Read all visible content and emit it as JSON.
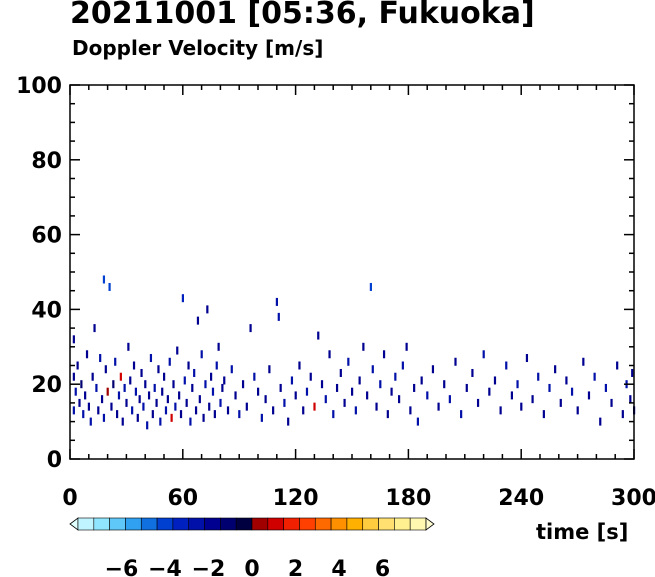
{
  "chart_data": {
    "type": "scatter",
    "title": "20211001 [05:36, Fukuoka]",
    "subtitle": "Doppler Velocity [m/s]",
    "xlabel": "time [s]",
    "ylabel": "",
    "xlim": [
      0,
      300
    ],
    "ylim": [
      0,
      100
    ],
    "x_ticks": [
      "0",
      "60",
      "120",
      "180",
      "240",
      "300"
    ],
    "y_ticks": [
      "0",
      "20",
      "40",
      "60",
      "80",
      "100"
    ],
    "grid": false,
    "colorbar": {
      "range": [
        -8,
        8
      ],
      "tick_labels": [
        "−6",
        "−4",
        "−2",
        "0",
        "2",
        "4",
        "6"
      ],
      "tick_values": [
        -6,
        -4,
        -2,
        0,
        2,
        4,
        6
      ],
      "colors": [
        "#e0ffff",
        "#c0f4ff",
        "#90e6ff",
        "#60c8f8",
        "#30a0f0",
        "#1070e0",
        "#0040d0",
        "#0020c0",
        "#0010a8",
        "#000090",
        "#000070",
        "#000040",
        "#a00000",
        "#d00000",
        "#f02000",
        "#ff4000",
        "#ff6a00",
        "#ff9000",
        "#ffb000",
        "#ffcc40",
        "#ffe070",
        "#fff090",
        "#fff8b0",
        "#fffcd0"
      ]
    },
    "points": [
      [
        2,
        32,
        -1.5
      ],
      [
        2,
        13,
        -2.5
      ],
      [
        2,
        22,
        -1.8
      ],
      [
        3,
        18,
        -2.2
      ],
      [
        4,
        25,
        -1.5
      ],
      [
        5,
        15,
        -2.0
      ],
      [
        6,
        20,
        -1.2
      ],
      [
        7,
        12,
        -2.4
      ],
      [
        8,
        17,
        -1.6
      ],
      [
        9,
        28,
        -2.0
      ],
      [
        10,
        14,
        -1.8
      ],
      [
        11,
        10,
        -2.6
      ],
      [
        12,
        22,
        -1.4
      ],
      [
        13,
        35,
        -1.7
      ],
      [
        14,
        19,
        -2.2
      ],
      [
        15,
        13,
        -1.9
      ],
      [
        16,
        27,
        -2.1
      ],
      [
        17,
        16,
        -1.5
      ],
      [
        18,
        11,
        -2.5
      ],
      [
        18,
        48,
        -3.5
      ],
      [
        19,
        24,
        -1.8
      ],
      [
        20,
        18,
        0.6
      ],
      [
        21,
        46,
        -4.0
      ],
      [
        22,
        14,
        -2.0
      ],
      [
        23,
        20,
        -1.3
      ],
      [
        24,
        26,
        -2.3
      ],
      [
        25,
        12,
        -1.7
      ],
      [
        26,
        17,
        -2.5
      ],
      [
        27,
        22,
        1.2
      ],
      [
        28,
        10,
        -1.9
      ],
      [
        29,
        19,
        -2.1
      ],
      [
        30,
        15,
        -1.4
      ],
      [
        31,
        30,
        -2.0
      ],
      [
        32,
        21,
        -1.6
      ],
      [
        33,
        13,
        -2.4
      ],
      [
        34,
        25,
        -1.8
      ],
      [
        35,
        18,
        -2.2
      ],
      [
        36,
        11,
        -1.5
      ],
      [
        37,
        16,
        -2.0
      ],
      [
        38,
        23,
        -1.7
      ],
      [
        39,
        14,
        -2.3
      ],
      [
        40,
        20,
        -1.9
      ],
      [
        41,
        9,
        -2.5
      ],
      [
        42,
        17,
        -1.4
      ],
      [
        43,
        27,
        -2.1
      ],
      [
        44,
        12,
        -1.8
      ],
      [
        45,
        19,
        -2.2
      ],
      [
        46,
        15,
        -1.6
      ],
      [
        47,
        24,
        -2.0
      ],
      [
        48,
        10,
        -2.4
      ],
      [
        49,
        18,
        -1.5
      ],
      [
        50,
        22,
        -1.9
      ],
      [
        51,
        13,
        -2.3
      ],
      [
        52,
        16,
        -1.7
      ],
      [
        53,
        26,
        -2.1
      ],
      [
        54,
        11,
        1.0
      ],
      [
        55,
        20,
        -1.8
      ],
      [
        56,
        14,
        -2.2
      ],
      [
        57,
        29,
        -1.5
      ],
      [
        58,
        17,
        -2.0
      ],
      [
        59,
        12,
        -1.6
      ],
      [
        60,
        43,
        -2.8
      ],
      [
        61,
        21,
        -2.3
      ],
      [
        62,
        15,
        -1.9
      ],
      [
        63,
        25,
        -1.4
      ],
      [
        64,
        10,
        -2.1
      ],
      [
        65,
        19,
        -1.7
      ],
      [
        66,
        23,
        -2.4
      ],
      [
        67,
        13,
        -1.8
      ],
      [
        68,
        37,
        -2.0
      ],
      [
        69,
        16,
        -1.5
      ],
      [
        70,
        28,
        -2.2
      ],
      [
        71,
        11,
        -1.9
      ],
      [
        72,
        20,
        -2.3
      ],
      [
        73,
        40,
        -1.6
      ],
      [
        74,
        14,
        -2.0
      ],
      [
        75,
        22,
        -1.8
      ],
      [
        76,
        18,
        -2.4
      ],
      [
        77,
        12,
        -1.5
      ],
      [
        78,
        25,
        -2.1
      ],
      [
        79,
        30,
        -1.7
      ],
      [
        80,
        15,
        -2.2
      ],
      [
        81,
        19,
        -1.9
      ],
      [
        82,
        21,
        -2.0
      ],
      [
        84,
        13,
        -1.6
      ],
      [
        86,
        24,
        -2.3
      ],
      [
        88,
        17,
        -1.8
      ],
      [
        90,
        12,
        -2.1
      ],
      [
        92,
        20,
        -1.5
      ],
      [
        94,
        14,
        -2.0
      ],
      [
        96,
        35,
        -1.9
      ],
      [
        98,
        22,
        -2.2
      ],
      [
        100,
        18,
        -1.7
      ],
      [
        102,
        11,
        -2.4
      ],
      [
        104,
        16,
        -1.6
      ],
      [
        106,
        24,
        -2.0
      ],
      [
        108,
        13,
        -1.8
      ],
      [
        110,
        42,
        -2.5
      ],
      [
        111,
        38,
        -2.2
      ],
      [
        112,
        19,
        -1.9
      ],
      [
        114,
        15,
        -2.1
      ],
      [
        116,
        10,
        -1.7
      ],
      [
        118,
        21,
        -2.3
      ],
      [
        120,
        17,
        -1.5
      ],
      [
        122,
        25,
        -2.0
      ],
      [
        124,
        13,
        -1.8
      ],
      [
        126,
        18,
        -2.2
      ],
      [
        128,
        22,
        -1.6
      ],
      [
        130,
        14,
        1.1
      ],
      [
        132,
        33,
        -2.0
      ],
      [
        134,
        20,
        -1.9
      ],
      [
        136,
        16,
        -2.3
      ],
      [
        138,
        28,
        -1.7
      ],
      [
        140,
        12,
        -2.1
      ],
      [
        142,
        19,
        -1.5
      ],
      [
        144,
        23,
        -2.0
      ],
      [
        146,
        15,
        -1.8
      ],
      [
        148,
        26,
        -2.4
      ],
      [
        150,
        18,
        -1.6
      ],
      [
        152,
        13,
        -2.2
      ],
      [
        154,
        21,
        -1.9
      ],
      [
        156,
        30,
        -2.0
      ],
      [
        158,
        17,
        -1.7
      ],
      [
        160,
        46,
        -3.6
      ],
      [
        161,
        24,
        -2.3
      ],
      [
        163,
        14,
        -1.8
      ],
      [
        165,
        20,
        -2.1
      ],
      [
        167,
        28,
        -1.6
      ],
      [
        169,
        12,
        -2.0
      ],
      [
        171,
        18,
        -1.9
      ],
      [
        173,
        22,
        -2.2
      ],
      [
        175,
        16,
        -1.7
      ],
      [
        177,
        25,
        -2.4
      ],
      [
        179,
        30,
        -1.5
      ],
      [
        181,
        13,
        -2.0
      ],
      [
        183,
        19,
        -1.8
      ],
      [
        185,
        10,
        -2.1
      ],
      [
        187,
        21,
        -1.6
      ],
      [
        190,
        17,
        -2.3
      ],
      [
        193,
        24,
        -1.9
      ],
      [
        196,
        14,
        -2.0
      ],
      [
        199,
        20,
        -1.7
      ],
      [
        202,
        16,
        -2.2
      ],
      [
        205,
        26,
        -1.8
      ],
      [
        208,
        12,
        -2.1
      ],
      [
        211,
        19,
        -1.6
      ],
      [
        214,
        23,
        -2.0
      ],
      [
        217,
        15,
        -1.9
      ],
      [
        220,
        28,
        -2.3
      ],
      [
        223,
        18,
        -1.7
      ],
      [
        226,
        21,
        -2.0
      ],
      [
        229,
        13,
        -1.8
      ],
      [
        232,
        25,
        -2.2
      ],
      [
        235,
        17,
        -1.5
      ],
      [
        238,
        20,
        -2.1
      ],
      [
        240,
        14,
        -1.9
      ],
      [
        243,
        27,
        -2.0
      ],
      [
        246,
        16,
        -1.7
      ],
      [
        249,
        22,
        -2.3
      ],
      [
        252,
        12,
        -1.8
      ],
      [
        255,
        19,
        -2.1
      ],
      [
        258,
        24,
        -1.6
      ],
      [
        261,
        15,
        -2.0
      ],
      [
        264,
        21,
        -1.9
      ],
      [
        267,
        18,
        -2.2
      ],
      [
        270,
        13,
        -1.7
      ],
      [
        273,
        26,
        -2.0
      ],
      [
        276,
        17,
        -1.8
      ],
      [
        279,
        22,
        -2.3
      ],
      [
        282,
        10,
        -1.6
      ],
      [
        285,
        19,
        -2.1
      ],
      [
        288,
        15,
        -1.9
      ],
      [
        291,
        25,
        -2.0
      ],
      [
        294,
        12,
        -1.7
      ],
      [
        296,
        20,
        -2.2
      ],
      [
        298,
        16,
        -1.8
      ],
      [
        299,
        23,
        -2.0
      ],
      [
        300,
        13,
        -1.9
      ]
    ]
  }
}
